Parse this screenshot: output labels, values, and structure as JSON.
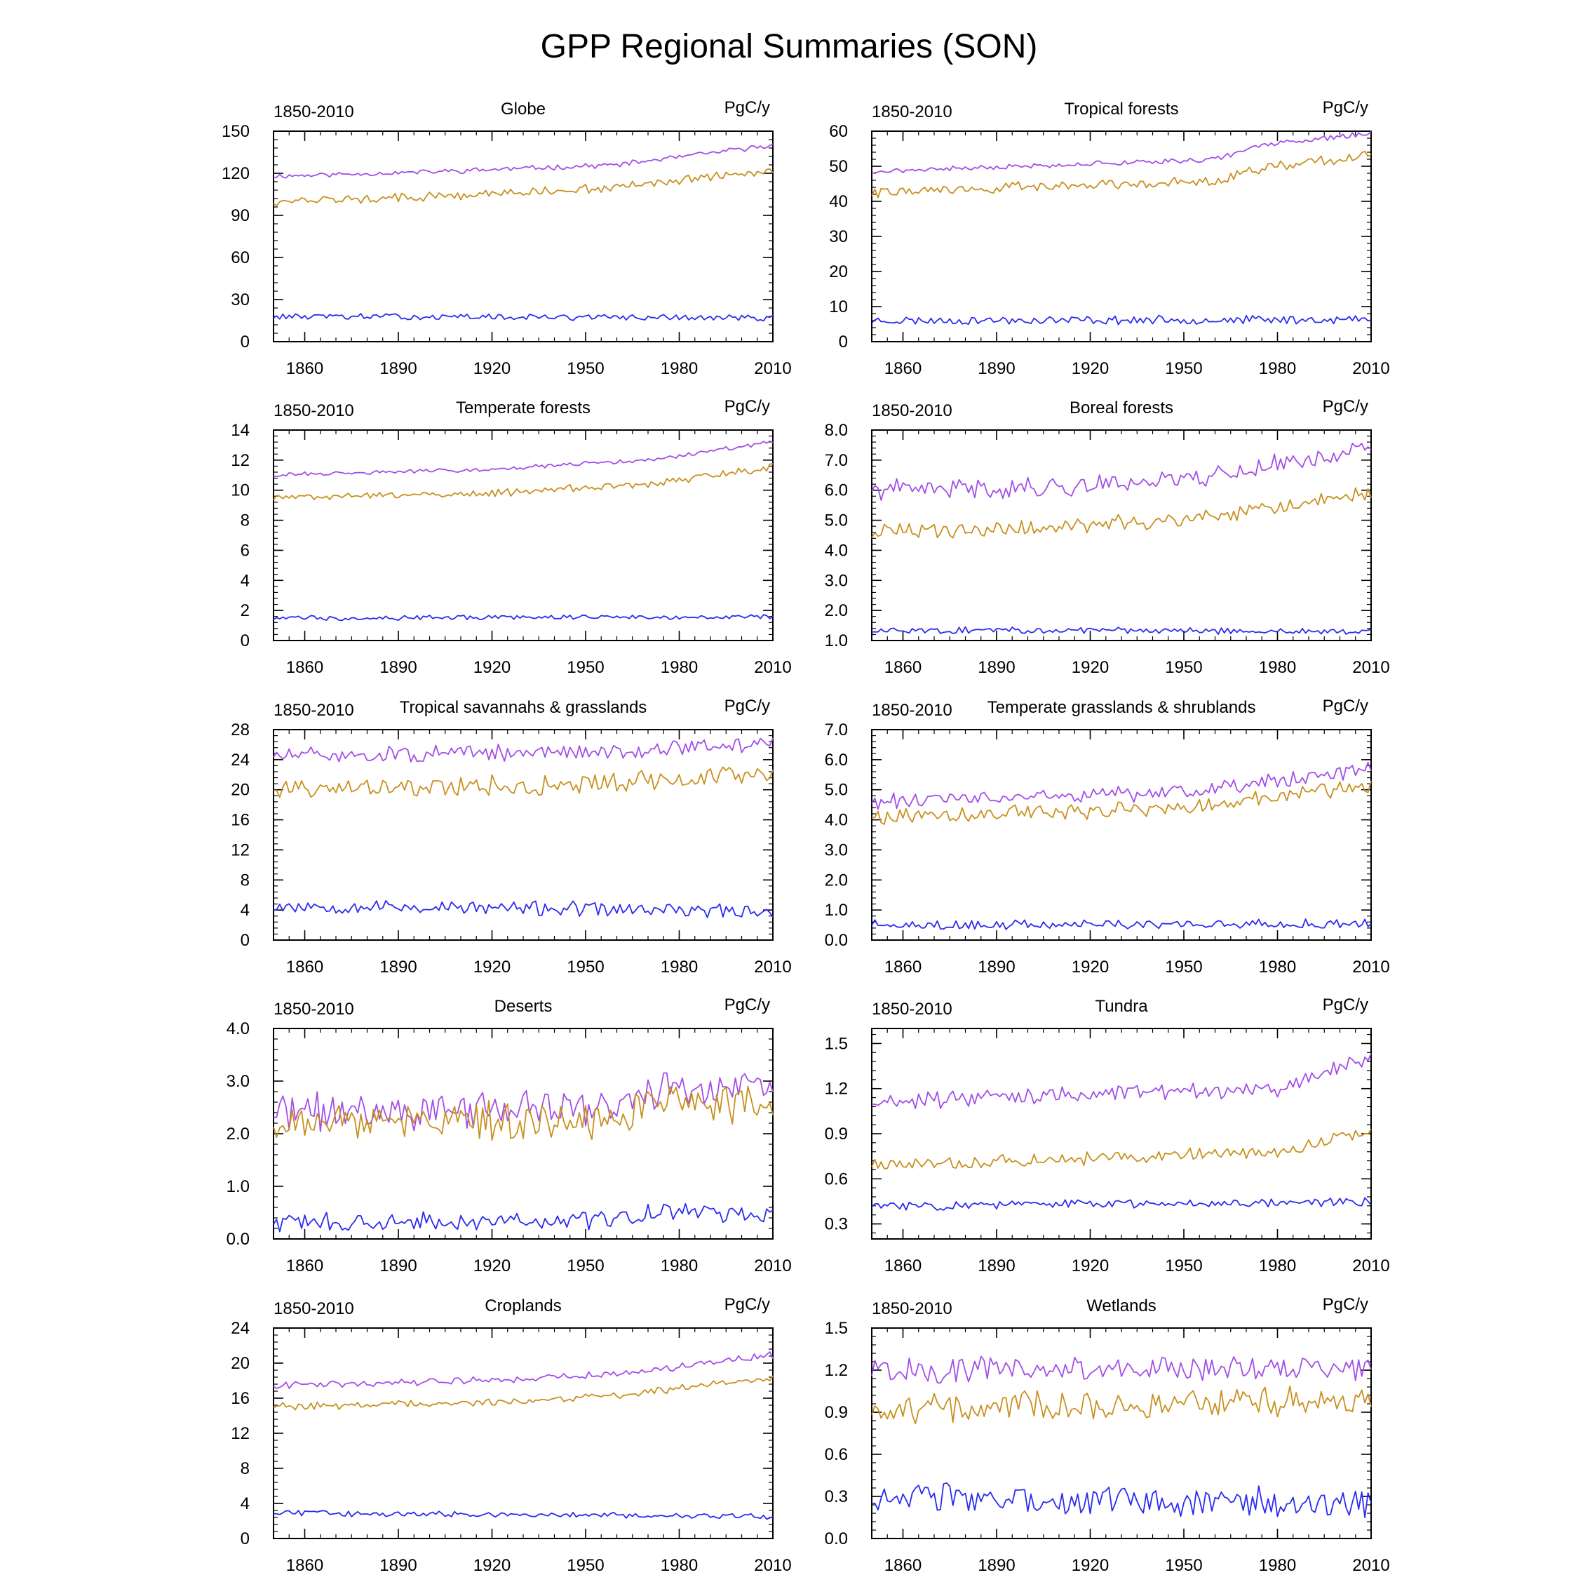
{
  "title": "GPP Regional Summaries (SON)",
  "colors": {
    "upper": "#A24EE8",
    "middle": "#C8901E",
    "lower": "#2B2BF0"
  },
  "chart_data": [
    {
      "type": "line",
      "title": "Globe",
      "left_label": "1850-2010",
      "units": "PgC/y",
      "xlim": [
        1850,
        2010
      ],
      "xticks": [
        1860,
        1890,
        1920,
        1950,
        1980,
        2010
      ],
      "ylim": [
        0,
        150
      ],
      "yticks": [
        0,
        30,
        60,
        90,
        120,
        150
      ],
      "ytick_labels": [
        "0",
        "30",
        "60",
        "90",
        "120",
        "150"
      ],
      "series": [
        {
          "key": "upper",
          "start": 1850,
          "end": 2010,
          "trend": [
            [
              1850,
              118
            ],
            [
              1900,
              121
            ],
            [
              1960,
              126
            ],
            [
              2010,
              140
            ]
          ],
          "noise": 1.5,
          "seed": 11
        },
        {
          "key": "middle",
          "start": 1850,
          "end": 2010,
          "trend": [
            [
              1850,
              100
            ],
            [
              1900,
              103
            ],
            [
              1960,
              110
            ],
            [
              2010,
              122
            ]
          ],
          "noise": 2.6,
          "seed": 12
        },
        {
          "key": "lower",
          "start": 1850,
          "end": 2010,
          "trend": [
            [
              1850,
              18
            ],
            [
              2010,
              17
            ]
          ],
          "noise": 1.8,
          "seed": 13
        }
      ]
    },
    {
      "type": "line",
      "title": "Tropical forests",
      "left_label": "1850-2010",
      "units": "PgC/y",
      "xlim": [
        1850,
        2010
      ],
      "xticks": [
        1860,
        1890,
        1920,
        1950,
        1980,
        2010
      ],
      "ylim": [
        0,
        60
      ],
      "yticks": [
        0,
        10,
        20,
        30,
        40,
        50,
        60
      ],
      "ytick_labels": [
        "0",
        "10",
        "20",
        "30",
        "40",
        "50",
        "60"
      ],
      "series": [
        {
          "key": "upper",
          "start": 1850,
          "end": 2010,
          "trend": [
            [
              1850,
              48.5
            ],
            [
              1960,
              52
            ],
            [
              1975,
              56
            ],
            [
              2010,
              59.5
            ]
          ],
          "noise": 0.6,
          "seed": 21
        },
        {
          "key": "middle",
          "start": 1850,
          "end": 2010,
          "trend": [
            [
              1850,
              42.5
            ],
            [
              1960,
              46
            ],
            [
              1975,
              49.5
            ],
            [
              2010,
              53
            ]
          ],
          "noise": 1.2,
          "seed": 22
        },
        {
          "key": "lower",
          "start": 1850,
          "end": 2010,
          "trend": [
            [
              1850,
              6
            ],
            [
              2010,
              6.3
            ]
          ],
          "noise": 1.0,
          "seed": 23
        }
      ]
    },
    {
      "type": "line",
      "title": "Temperate forests",
      "left_label": "1850-2010",
      "units": "PgC/y",
      "xlim": [
        1850,
        2010
      ],
      "xticks": [
        1860,
        1890,
        1920,
        1950,
        1980,
        2010
      ],
      "ylim": [
        0,
        14
      ],
      "yticks": [
        0,
        2,
        4,
        6,
        8,
        10,
        12,
        14
      ],
      "ytick_labels": [
        "0",
        "2",
        "4",
        "6",
        "8",
        "10",
        "12",
        "14"
      ],
      "series": [
        {
          "key": "upper",
          "start": 1850,
          "end": 2010,
          "trend": [
            [
              1850,
              11
            ],
            [
              1920,
              11.4
            ],
            [
              1970,
              12
            ],
            [
              2010,
              13.2
            ]
          ],
          "noise": 0.12,
          "seed": 31
        },
        {
          "key": "middle",
          "start": 1850,
          "end": 2010,
          "trend": [
            [
              1850,
              9.5
            ],
            [
              1920,
              9.8
            ],
            [
              1970,
              10.4
            ],
            [
              2010,
              11.5
            ]
          ],
          "noise": 0.2,
          "seed": 32
        },
        {
          "key": "lower",
          "start": 1850,
          "end": 2010,
          "trend": [
            [
              1850,
              1.5
            ],
            [
              2010,
              1.6
            ]
          ],
          "noise": 0.14,
          "seed": 33
        }
      ]
    },
    {
      "type": "line",
      "title": "Boreal forests",
      "left_label": "1850-2010",
      "units": "PgC/y",
      "xlim": [
        1850,
        2010
      ],
      "xticks": [
        1860,
        1890,
        1920,
        1950,
        1980,
        2010
      ],
      "ylim": [
        1,
        8
      ],
      "yticks": [
        1,
        2,
        3,
        4,
        5,
        6,
        7,
        8
      ],
      "ytick_labels": [
        "1.0",
        "2.0",
        "3.0",
        "4.0",
        "5.0",
        "6.0",
        "7.0",
        "8.0"
      ],
      "series": [
        {
          "key": "upper",
          "start": 1850,
          "end": 2010,
          "trend": [
            [
              1850,
              6.0
            ],
            [
              1910,
              6.1
            ],
            [
              1960,
              6.5
            ],
            [
              2010,
              7.4
            ]
          ],
          "noise": 0.28,
          "seed": 41
        },
        {
          "key": "middle",
          "start": 1850,
          "end": 2010,
          "trend": [
            [
              1850,
              4.6
            ],
            [
              1910,
              4.75
            ],
            [
              1960,
              5.1
            ],
            [
              2010,
              5.9
            ]
          ],
          "noise": 0.22,
          "seed": 42
        },
        {
          "key": "lower",
          "start": 1850,
          "end": 2010,
          "trend": [
            [
              1850,
              1.35
            ],
            [
              2010,
              1.3
            ]
          ],
          "noise": 0.09,
          "seed": 43
        }
      ]
    },
    {
      "type": "line",
      "title": "Tropical savannahs & grasslands",
      "left_label": "1850-2010",
      "units": "PgC/y",
      "xlim": [
        1850,
        2010
      ],
      "xticks": [
        1860,
        1890,
        1920,
        1950,
        1980,
        2010
      ],
      "ylim": [
        0,
        28
      ],
      "yticks": [
        0,
        4,
        8,
        12,
        16,
        20,
        24,
        28
      ],
      "ytick_labels": [
        "0",
        "4",
        "8",
        "12",
        "16",
        "20",
        "24",
        "28"
      ],
      "series": [
        {
          "key": "upper",
          "start": 1850,
          "end": 2010,
          "trend": [
            [
              1850,
              24.5
            ],
            [
              1950,
              25
            ],
            [
              2010,
              26.2
            ]
          ],
          "noise": 0.9,
          "seed": 51
        },
        {
          "key": "middle",
          "start": 1850,
          "end": 2010,
          "trend": [
            [
              1850,
              20
            ],
            [
              1950,
              20.8
            ],
            [
              2010,
              22.3
            ]
          ],
          "noise": 1.1,
          "seed": 52
        },
        {
          "key": "lower",
          "start": 1850,
          "end": 2010,
          "trend": [
            [
              1850,
              4.6
            ],
            [
              2010,
              3.8
            ]
          ],
          "noise": 0.8,
          "seed": 53
        }
      ]
    },
    {
      "type": "line",
      "title": "Temperate grasslands & shrublands",
      "left_label": "1850-2010",
      "units": "PgC/y",
      "xlim": [
        1850,
        2010
      ],
      "xticks": [
        1860,
        1890,
        1920,
        1950,
        1980,
        2010
      ],
      "ylim": [
        0,
        7
      ],
      "yticks": [
        0,
        1,
        2,
        3,
        4,
        5,
        6,
        7
      ],
      "ytick_labels": [
        "0.0",
        "1.0",
        "2.0",
        "3.0",
        "4.0",
        "5.0",
        "6.0",
        "7.0"
      ],
      "series": [
        {
          "key": "upper",
          "start": 1850,
          "end": 2010,
          "trend": [
            [
              1850,
              4.6
            ],
            [
              1950,
              4.9
            ],
            [
              2010,
              5.7
            ]
          ],
          "noise": 0.22,
          "seed": 61
        },
        {
          "key": "middle",
          "start": 1850,
          "end": 2010,
          "trend": [
            [
              1850,
              4.1
            ],
            [
              1950,
              4.4
            ],
            [
              2010,
              5.2
            ]
          ],
          "noise": 0.22,
          "seed": 62
        },
        {
          "key": "lower",
          "start": 1850,
          "end": 2010,
          "trend": [
            [
              1850,
              0.5
            ],
            [
              2010,
              0.55
            ]
          ],
          "noise": 0.13,
          "seed": 63
        }
      ]
    },
    {
      "type": "line",
      "title": "Deserts",
      "left_label": "1850-2010",
      "units": "PgC/y",
      "xlim": [
        1850,
        2010
      ],
      "xticks": [
        1860,
        1890,
        1920,
        1950,
        1980,
        2010
      ],
      "ylim": [
        0,
        4
      ],
      "yticks": [
        0,
        1,
        2,
        3,
        4
      ],
      "ytick_labels": [
        "0.0",
        "1.0",
        "2.0",
        "3.0",
        "4.0"
      ],
      "series": [
        {
          "key": "upper",
          "start": 1850,
          "end": 2010,
          "trend": [
            [
              1850,
              2.4
            ],
            [
              1960,
              2.5
            ],
            [
              1975,
              2.9
            ],
            [
              2010,
              2.85
            ]
          ],
          "noise": 0.3,
          "seed": 71
        },
        {
          "key": "middle",
          "start": 1850,
          "end": 2010,
          "trend": [
            [
              1850,
              2.2
            ],
            [
              1960,
              2.25
            ],
            [
              1975,
              2.6
            ],
            [
              2010,
              2.55
            ]
          ],
          "noise": 0.3,
          "seed": 72
        },
        {
          "key": "lower",
          "start": 1850,
          "end": 2010,
          "trend": [
            [
              1850,
              0.3
            ],
            [
              1960,
              0.35
            ],
            [
              1975,
              0.55
            ],
            [
              2010,
              0.42
            ]
          ],
          "noise": 0.14,
          "seed": 73
        }
      ]
    },
    {
      "type": "line",
      "title": "Tundra",
      "left_label": "1850-2010",
      "units": "PgC/y",
      "xlim": [
        1850,
        2010
      ],
      "xticks": [
        1860,
        1890,
        1920,
        1950,
        1980,
        2010
      ],
      "ylim": [
        0.2,
        1.6
      ],
      "yticks": [
        0.3,
        0.6,
        0.9,
        1.2,
        1.5
      ],
      "ytick_labels": [
        "0.3",
        "0.6",
        "0.9",
        "1.2",
        "1.5"
      ],
      "series": [
        {
          "key": "upper",
          "start": 1850,
          "end": 2010,
          "trend": [
            [
              1850,
              1.11
            ],
            [
              1940,
              1.18
            ],
            [
              1980,
              1.2
            ],
            [
              2010,
              1.4
            ]
          ],
          "noise": 0.045,
          "seed": 81
        },
        {
          "key": "middle",
          "start": 1850,
          "end": 2010,
          "trend": [
            [
              1850,
              0.69
            ],
            [
              1940,
              0.75
            ],
            [
              1980,
              0.78
            ],
            [
              2010,
              0.92
            ]
          ],
          "noise": 0.035,
          "seed": 82
        },
        {
          "key": "lower",
          "start": 1850,
          "end": 2010,
          "trend": [
            [
              1850,
              0.42
            ],
            [
              2010,
              0.45
            ]
          ],
          "noise": 0.025,
          "seed": 83
        }
      ]
    },
    {
      "type": "line",
      "title": "Croplands",
      "left_label": "1850-2010",
      "units": "PgC/y",
      "xlim": [
        1850,
        2010
      ],
      "xticks": [
        1860,
        1890,
        1920,
        1950,
        1980,
        2010
      ],
      "ylim": [
        0,
        24
      ],
      "yticks": [
        0,
        4,
        8,
        12,
        16,
        20,
        24
      ],
      "ytick_labels": [
        "0",
        "4",
        "8",
        "12",
        "16",
        "20",
        "24"
      ],
      "series": [
        {
          "key": "upper",
          "start": 1850,
          "end": 2010,
          "trend": [
            [
              1850,
              17.5
            ],
            [
              1930,
              18.2
            ],
            [
              1960,
              18.8
            ],
            [
              2010,
              20.9
            ]
          ],
          "noise": 0.35,
          "seed": 91
        },
        {
          "key": "middle",
          "start": 1850,
          "end": 2010,
          "trend": [
            [
              1850,
              15
            ],
            [
              1930,
              15.6
            ],
            [
              1960,
              16.3
            ],
            [
              2010,
              18.4
            ]
          ],
          "noise": 0.35,
          "seed": 92
        },
        {
          "key": "lower",
          "start": 1850,
          "end": 2010,
          "trend": [
            [
              1850,
              2.9
            ],
            [
              2010,
              2.5
            ]
          ],
          "noise": 0.28,
          "seed": 93
        }
      ]
    },
    {
      "type": "line",
      "title": "Wetlands",
      "left_label": "1850-2010",
      "units": "PgC/y",
      "xlim": [
        1850,
        2010
      ],
      "xticks": [
        1860,
        1890,
        1920,
        1950,
        1980,
        2010
      ],
      "ylim": [
        0,
        1.5
      ],
      "yticks": [
        0,
        0.3,
        0.6,
        0.9,
        1.2,
        1.5
      ],
      "ytick_labels": [
        "0.0",
        "0.3",
        "0.6",
        "0.9",
        "1.2",
        "1.5"
      ],
      "series": [
        {
          "key": "upper",
          "start": 1850,
          "end": 2010,
          "trend": [
            [
              1850,
              1.2
            ],
            [
              2010,
              1.22
            ]
          ],
          "noise": 0.08,
          "seed": 101
        },
        {
          "key": "middle",
          "start": 1850,
          "end": 2010,
          "trend": [
            [
              1850,
              0.92
            ],
            [
              2010,
              1.0
            ]
          ],
          "noise": 0.09,
          "seed": 102
        },
        {
          "key": "lower",
          "start": 1850,
          "end": 2010,
          "trend": [
            [
              1850,
              0.28
            ],
            [
              2010,
              0.25
            ]
          ],
          "noise": 0.09,
          "seed": 103
        }
      ]
    }
  ]
}
